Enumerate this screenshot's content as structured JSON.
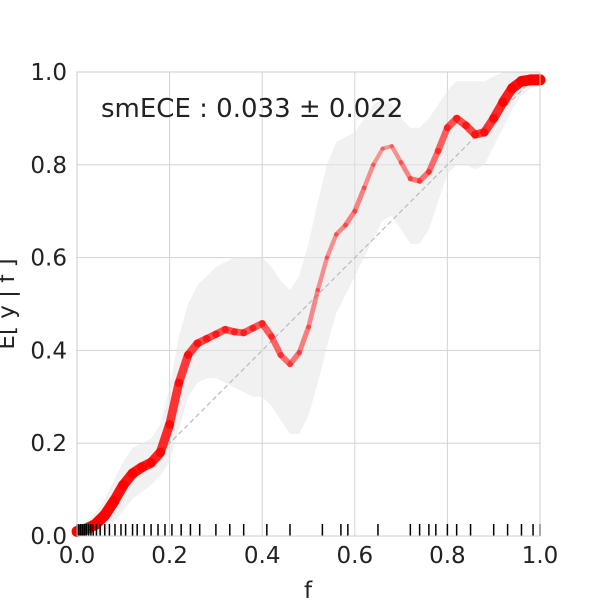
{
  "chart_data": {
    "type": "line",
    "title": "",
    "xlabel": "f",
    "ylabel": "E[ y | f ]",
    "xlim": [
      0.0,
      1.0
    ],
    "ylim": [
      0.0,
      1.0
    ],
    "grid": true,
    "xticks": [
      "0.0",
      "0.2",
      "0.4",
      "0.6",
      "0.8",
      "1.0"
    ],
    "yticks": [
      "0.0",
      "0.2",
      "0.4",
      "0.6",
      "0.8",
      "1.0"
    ],
    "annotation": "smECE : 0.033 ± 0.022",
    "colors": {
      "curve": "#ff0000",
      "band": "#e6e6e6",
      "diagonal": "#bbbbbb",
      "grid": "#d3d3d3",
      "rug": "#000000"
    },
    "series": [
      {
        "x": [
          0.0,
          0.02,
          0.04,
          0.06,
          0.08,
          0.1,
          0.12,
          0.14,
          0.16,
          0.18,
          0.2,
          0.22,
          0.24,
          0.26,
          0.28,
          0.3,
          0.32,
          0.34,
          0.36,
          0.38,
          0.4,
          0.42,
          0.44,
          0.46,
          0.48,
          0.5,
          0.52,
          0.54,
          0.56,
          0.58,
          0.6,
          0.62,
          0.64,
          0.66,
          0.68,
          0.7,
          0.72,
          0.74,
          0.76,
          0.78,
          0.8,
          0.82,
          0.84,
          0.86,
          0.88,
          0.9,
          0.92,
          0.94,
          0.96,
          0.98,
          1.0
        ],
        "y": [
          0.01,
          0.015,
          0.025,
          0.045,
          0.075,
          0.11,
          0.135,
          0.148,
          0.158,
          0.18,
          0.24,
          0.33,
          0.39,
          0.415,
          0.425,
          0.435,
          0.445,
          0.44,
          0.438,
          0.448,
          0.458,
          0.43,
          0.39,
          0.37,
          0.395,
          0.45,
          0.53,
          0.6,
          0.65,
          0.67,
          0.7,
          0.75,
          0.8,
          0.835,
          0.84,
          0.805,
          0.77,
          0.765,
          0.785,
          0.83,
          0.88,
          0.9,
          0.885,
          0.865,
          0.87,
          0.9,
          0.935,
          0.965,
          0.98,
          0.983,
          0.983
        ],
        "band_lower": [
          0.0,
          0.0,
          0.0,
          0.01,
          0.03,
          0.055,
          0.08,
          0.095,
          0.11,
          0.13,
          0.16,
          0.23,
          0.3,
          0.33,
          0.34,
          0.34,
          0.33,
          0.32,
          0.31,
          0.3,
          0.3,
          0.28,
          0.25,
          0.22,
          0.22,
          0.26,
          0.33,
          0.41,
          0.48,
          0.52,
          0.56,
          0.6,
          0.64,
          0.68,
          0.69,
          0.66,
          0.63,
          0.63,
          0.66,
          0.72,
          0.78,
          0.8,
          0.8,
          0.79,
          0.8,
          0.84,
          0.88,
          0.92,
          0.95,
          0.965,
          0.97
        ],
        "band_upper": [
          0.02,
          0.03,
          0.05,
          0.08,
          0.12,
          0.16,
          0.19,
          0.2,
          0.21,
          0.24,
          0.32,
          0.43,
          0.5,
          0.54,
          0.56,
          0.58,
          0.59,
          0.6,
          0.6,
          0.6,
          0.6,
          0.58,
          0.55,
          0.53,
          0.56,
          0.63,
          0.72,
          0.8,
          0.85,
          0.86,
          0.87,
          0.9,
          0.93,
          0.94,
          0.93,
          0.9,
          0.88,
          0.88,
          0.9,
          0.93,
          0.96,
          0.98,
          0.98,
          0.98,
          0.98,
          0.99,
          1.0,
          1.0,
          1.0,
          1.0,
          1.0
        ],
        "density": [
          1.0,
          1.0,
          1.0,
          1.0,
          0.95,
          0.9,
          0.9,
          0.88,
          0.85,
          0.82,
          0.75,
          0.72,
          0.7,
          0.65,
          0.62,
          0.6,
          0.58,
          0.56,
          0.55,
          0.56,
          0.55,
          0.5,
          0.45,
          0.42,
          0.38,
          0.32,
          0.28,
          0.25,
          0.28,
          0.32,
          0.35,
          0.3,
          0.25,
          0.22,
          0.22,
          0.28,
          0.35,
          0.4,
          0.42,
          0.48,
          0.55,
          0.6,
          0.62,
          0.65,
          0.7,
          0.75,
          0.82,
          0.88,
          0.95,
          1.0,
          1.0
        ]
      }
    ],
    "rug": [
      0.0,
      0.004,
      0.008,
      0.012,
      0.016,
      0.02,
      0.025,
      0.03,
      0.035,
      0.042,
      0.05,
      0.06,
      0.07,
      0.082,
      0.095,
      0.105,
      0.12,
      0.13,
      0.145,
      0.16,
      0.175,
      0.19,
      0.205,
      0.225,
      0.245,
      0.265,
      0.3,
      0.33,
      0.36,
      0.41,
      0.46,
      0.53,
      0.57,
      0.585,
      0.65,
      0.72,
      0.74,
      0.76,
      0.775,
      0.8,
      0.82,
      0.85,
      0.9,
      0.93,
      0.96,
      0.985,
      1.0
    ]
  }
}
